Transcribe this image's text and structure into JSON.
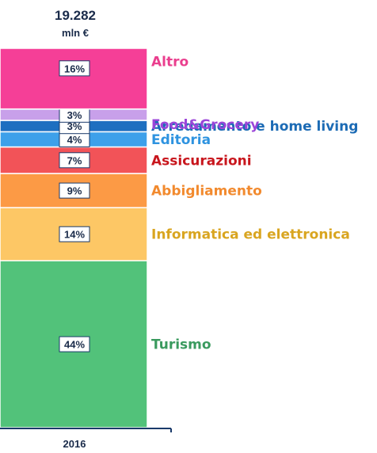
{
  "chart_data": {
    "type": "bar",
    "stacked": true,
    "categories": [
      "2016"
    ],
    "total": {
      "value": "19.282",
      "unit": "mln €"
    },
    "series": [
      {
        "name": "Turismo",
        "value": 44,
        "label": "44%",
        "color": "#52c27a",
        "text_color": "#3a9a5e"
      },
      {
        "name": "Informatica ed elettronica",
        "value": 14,
        "label": "14%",
        "color": "#fdc765",
        "text_color": "#d9a520"
      },
      {
        "name": "Abbigliamento",
        "value": 9,
        "label": "9%",
        "color": "#fc9a45",
        "text_color": "#f28a2e"
      },
      {
        "name": "Assicurazioni",
        "value": 7,
        "label": "7%",
        "color": "#f25358",
        "text_color": "#c8161d"
      },
      {
        "name": "Editoria",
        "value": 4,
        "label": "4%",
        "color": "#3da0ea",
        "text_color": "#2e93e0"
      },
      {
        "name": "Arredamento e home living",
        "value": 3,
        "label": "3%",
        "color": "#1e6fc0",
        "text_color": "#1c6bb5"
      },
      {
        "name": "Food&Grocery",
        "value": 3,
        "label": "3%",
        "color": "#c8a0ea",
        "text_color": "#9b45d9"
      },
      {
        "name": "Altro",
        "value": 16,
        "label": "16%",
        "color": "#f53f97",
        "text_color": "#ea3e8e"
      }
    ],
    "ylim": [
      0,
      100
    ],
    "grid": false,
    "title": "",
    "xlabel": "",
    "ylabel": ""
  }
}
